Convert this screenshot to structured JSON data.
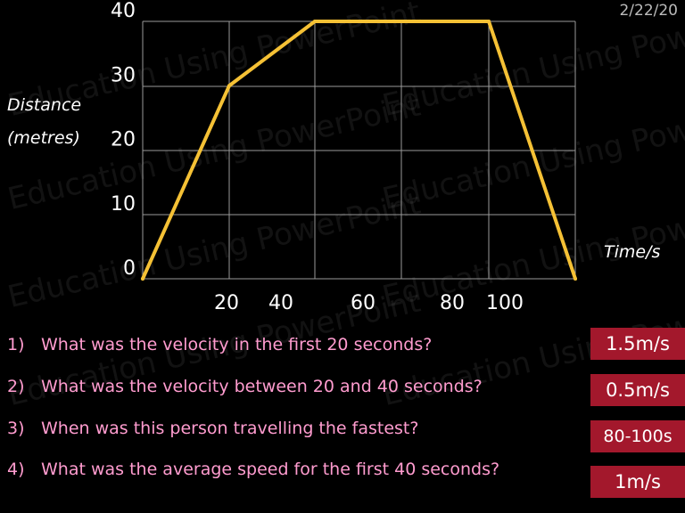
{
  "date": "2/22/20",
  "watermark": "Education Using PowerPoint",
  "chart_data": {
    "type": "line",
    "title": "",
    "ylabel_lines": [
      "Distance",
      "(metres)"
    ],
    "xlabel": "Time/s",
    "y_ticks": [
      "0",
      "10",
      "20",
      "30",
      "40"
    ],
    "x_ticks": [
      "20",
      "40",
      "60",
      "80",
      "100"
    ],
    "ylim": [
      0,
      40
    ],
    "grid": true,
    "series": [
      {
        "x": [
          0,
          20,
          40,
          80,
          100
        ],
        "y": [
          0,
          30,
          40,
          40,
          0
        ],
        "color": "#f5c135"
      }
    ]
  },
  "questions": [
    {
      "num": "1)",
      "text": "What was the velocity in the first 20 seconds?",
      "answer": "1.5m/s"
    },
    {
      "num": "2)",
      "text": "What was the velocity between 20 and 40 seconds?",
      "answer": "0.5m/s"
    },
    {
      "num": "3)",
      "text": "When was this person travelling the fastest?",
      "answer": "80-100s"
    },
    {
      "num": "4)",
      "text": "What was the average speed for the first 40 seconds?",
      "answer": "1m/s"
    }
  ]
}
